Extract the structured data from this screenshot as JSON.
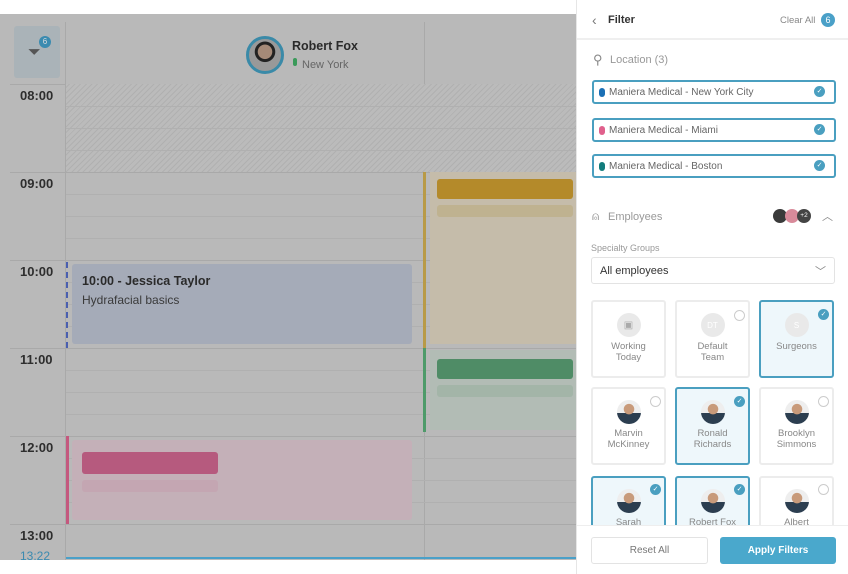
{
  "calendar": {
    "filter_badge": "6",
    "employee": {
      "name": "Robert Fox",
      "location": "New York"
    },
    "times": [
      "08:00",
      "09:00",
      "10:00",
      "11:00",
      "12:00",
      "13:00"
    ],
    "current_time": "13:22",
    "appointment": {
      "title": "10:00 - Jessica Taylor",
      "service": "Hydrafacial basics"
    }
  },
  "filter": {
    "title": "Filter",
    "clear_all": "Clear All",
    "count": "6",
    "location_label": "Location (3)",
    "locations": [
      {
        "name": "Maniera Medical - New York City",
        "color": "#1a6fb5"
      },
      {
        "name": "Maniera Medical - Miami",
        "color": "#e0608c"
      },
      {
        "name": "Maniera Medical - Boston",
        "color": "#127c7c"
      }
    ],
    "employees_label": "Employees",
    "employees_more": "+2",
    "specialty_label": "Specialty Groups",
    "specialty_value": "All employees",
    "cards": [
      {
        "label": "Working Today",
        "initials": "",
        "selected": false
      },
      {
        "label": "Default Team",
        "initials": "DT",
        "selected": false
      },
      {
        "label": "Surgeons",
        "initials": "S",
        "selected": true
      },
      {
        "label": "Marvin McKinney",
        "selected": false
      },
      {
        "label": "Ronald Richards",
        "selected": true
      },
      {
        "label": "Brooklyn Simmons",
        "selected": false
      },
      {
        "label": "Sarah",
        "selected": true
      },
      {
        "label": "Robert Fox",
        "selected": true
      },
      {
        "label": "Albert",
        "selected": false
      }
    ],
    "reset": "Reset All",
    "apply": "Apply Filters"
  }
}
